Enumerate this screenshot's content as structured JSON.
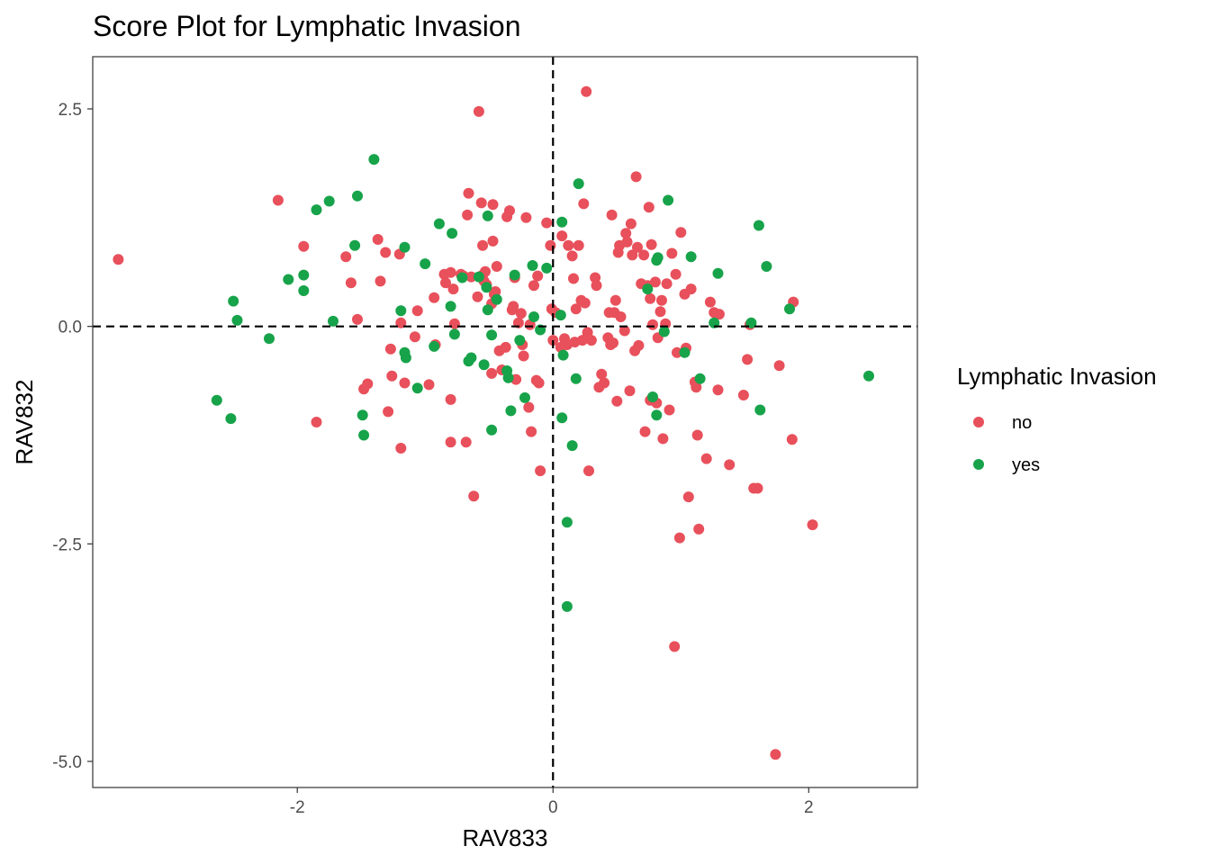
{
  "chart_data": {
    "type": "scatter",
    "title": "Score Plot for Lymphatic Invasion",
    "xlabel": "RAV833",
    "ylabel": "RAV832",
    "xlim": [
      -3.6,
      2.85
    ],
    "ylim": [
      -5.3,
      3.1
    ],
    "x_ticks": [
      -2,
      0,
      2
    ],
    "x_tick_labels": [
      "-2",
      "0",
      "2"
    ],
    "y_ticks": [
      -5,
      -2.5,
      0,
      2.5
    ],
    "y_tick_labels": [
      "-5.0",
      "-2.5",
      "0.0",
      "2.5"
    ],
    "reference_lines": {
      "x": 0,
      "y": 0,
      "style": "dashed"
    },
    "grid": false,
    "legend": {
      "title": "Lymphatic Invasion",
      "position": "right"
    },
    "series": [
      {
        "name": "no",
        "color": "#e8505b",
        "points": [
          [
            -3.4,
            0.77
          ],
          [
            -2.15,
            1.45
          ],
          [
            -1.95,
            0.92
          ],
          [
            -1.85,
            -1.1
          ],
          [
            -1.62,
            0.8
          ],
          [
            -1.58,
            0.5
          ],
          [
            -1.53,
            0.08
          ],
          [
            -1.48,
            -0.72
          ],
          [
            -1.45,
            -0.66
          ],
          [
            -1.37,
            1.0
          ],
          [
            -1.35,
            0.52
          ],
          [
            -1.31,
            0.85
          ],
          [
            -1.29,
            -0.98
          ],
          [
            -1.27,
            -0.26
          ],
          [
            -1.26,
            -0.57
          ],
          [
            -1.2,
            0.83
          ],
          [
            -1.19,
            0.04
          ],
          [
            -1.19,
            -1.4
          ],
          [
            -1.16,
            -0.65
          ],
          [
            -1.08,
            -0.12
          ],
          [
            -1.06,
            0.18
          ],
          [
            -0.97,
            -0.67
          ],
          [
            -0.93,
            0.33
          ],
          [
            -0.92,
            -0.21
          ],
          [
            -0.85,
            0.6
          ],
          [
            -0.84,
            0.5
          ],
          [
            -0.8,
            0.62
          ],
          [
            -0.8,
            -0.84
          ],
          [
            -0.8,
            -1.33
          ],
          [
            -0.78,
            0.43
          ],
          [
            -0.77,
            0.03
          ],
          [
            -0.72,
            0.6
          ],
          [
            -0.7,
            0.58
          ],
          [
            -0.68,
            -1.33
          ],
          [
            -0.67,
            1.28
          ],
          [
            -0.66,
            1.53
          ],
          [
            -0.64,
            0.57
          ],
          [
            -0.62,
            -1.95
          ],
          [
            -0.59,
            0.34
          ],
          [
            -0.58,
            2.47
          ],
          [
            -0.56,
            1.42
          ],
          [
            -0.55,
            0.93
          ],
          [
            -0.55,
            0.59
          ],
          [
            -0.54,
            0.52
          ],
          [
            -0.53,
            0.63
          ],
          [
            -0.52,
            0.48
          ],
          [
            -0.48,
            0.26
          ],
          [
            -0.48,
            -0.54
          ],
          [
            -0.47,
            1.4
          ],
          [
            -0.47,
            0.98
          ],
          [
            -0.46,
            0.37
          ],
          [
            -0.45,
            0.4
          ],
          [
            -0.44,
            0.69
          ],
          [
            -0.42,
            -0.28
          ],
          [
            -0.4,
            -0.5
          ],
          [
            -0.37,
            -0.24
          ],
          [
            -0.36,
            1.26
          ],
          [
            -0.34,
            1.33
          ],
          [
            -0.32,
            0.19
          ],
          [
            -0.31,
            0.23
          ],
          [
            -0.3,
            0.56
          ],
          [
            -0.29,
            -0.61
          ],
          [
            -0.27,
            0.04
          ],
          [
            -0.25,
            0.15
          ],
          [
            -0.24,
            -0.21
          ],
          [
            -0.23,
            -0.34
          ],
          [
            -0.21,
            1.25
          ],
          [
            -0.19,
            -0.93
          ],
          [
            -0.18,
            0.02
          ],
          [
            -0.17,
            -1.21
          ],
          [
            -0.15,
            0.47
          ],
          [
            -0.13,
            -0.62
          ],
          [
            -0.12,
            0.58
          ],
          [
            -0.11,
            -0.65
          ],
          [
            -0.1,
            -1.66
          ],
          [
            -0.05,
            1.19
          ],
          [
            -0.02,
            0.93
          ],
          [
            -0.01,
            0.2
          ],
          [
            0.0,
            -0.16
          ],
          [
            0.02,
            0.16
          ],
          [
            0.06,
            -0.24
          ],
          [
            0.07,
            1.04
          ],
          [
            0.09,
            -0.14
          ],
          [
            0.11,
            -0.21
          ],
          [
            0.12,
            0.93
          ],
          [
            0.15,
            0.81
          ],
          [
            0.16,
            0.55
          ],
          [
            0.17,
            -0.18
          ],
          [
            0.18,
            0.2
          ],
          [
            0.2,
            0.93
          ],
          [
            0.22,
            0.3
          ],
          [
            0.23,
            -0.16
          ],
          [
            0.24,
            1.41
          ],
          [
            0.25,
            0.27
          ],
          [
            0.26,
            2.7
          ],
          [
            0.27,
            -0.07
          ],
          [
            0.28,
            -1.66
          ],
          [
            0.3,
            -0.16
          ],
          [
            0.33,
            0.56
          ],
          [
            0.34,
            0.47
          ],
          [
            0.36,
            -0.7
          ],
          [
            0.38,
            -0.55
          ],
          [
            0.4,
            -0.65
          ],
          [
            0.43,
            -0.13
          ],
          [
            0.44,
            0.16
          ],
          [
            0.45,
            -0.21
          ],
          [
            0.46,
            1.28
          ],
          [
            0.47,
            -0.19
          ],
          [
            0.48,
            0.16
          ],
          [
            0.49,
            0.3
          ],
          [
            0.5,
            -0.86
          ],
          [
            0.51,
            0.85
          ],
          [
            0.52,
            0.93
          ],
          [
            0.53,
            0.11
          ],
          [
            0.56,
            -0.05
          ],
          [
            0.57,
            1.07
          ],
          [
            0.58,
            0.97
          ],
          [
            0.6,
            -0.74
          ],
          [
            0.61,
            1.18
          ],
          [
            0.62,
            0.82
          ],
          [
            0.64,
            -0.28
          ],
          [
            0.65,
            1.72
          ],
          [
            0.66,
            0.91
          ],
          [
            0.67,
            -0.22
          ],
          [
            0.69,
            0.49
          ],
          [
            0.71,
            0.82
          ],
          [
            0.72,
            -1.21
          ],
          [
            0.74,
            0.47
          ],
          [
            0.75,
            1.37
          ],
          [
            0.76,
            0.32
          ],
          [
            0.76,
            -0.85
          ],
          [
            0.77,
            0.94
          ],
          [
            0.78,
            0.02
          ],
          [
            0.8,
            0.51
          ],
          [
            0.81,
            -0.88
          ],
          [
            0.82,
            -0.13
          ],
          [
            0.84,
            0.17
          ],
          [
            0.85,
            0.3
          ],
          [
            0.86,
            -1.29
          ],
          [
            0.88,
            0.03
          ],
          [
            0.89,
            0.49
          ],
          [
            0.91,
            -0.96
          ],
          [
            0.93,
            0.84
          ],
          [
            0.95,
            -3.68
          ],
          [
            0.96,
            0.6
          ],
          [
            0.97,
            -0.3
          ],
          [
            0.99,
            -2.43
          ],
          [
            1.0,
            1.08
          ],
          [
            1.03,
            0.37
          ],
          [
            1.04,
            -0.25
          ],
          [
            1.06,
            -1.96
          ],
          [
            1.08,
            0.43
          ],
          [
            1.11,
            -0.64
          ],
          [
            1.12,
            -0.7
          ],
          [
            1.13,
            -1.25
          ],
          [
            1.14,
            -2.33
          ],
          [
            1.2,
            -1.52
          ],
          [
            1.23,
            0.28
          ],
          [
            1.26,
            0.16
          ],
          [
            1.29,
            -0.73
          ],
          [
            1.3,
            0.14
          ],
          [
            1.38,
            -1.59
          ],
          [
            1.49,
            -0.79
          ],
          [
            1.52,
            -0.38
          ],
          [
            1.54,
            0.02
          ],
          [
            1.57,
            -1.86
          ],
          [
            1.6,
            -1.86
          ],
          [
            1.74,
            -4.92
          ],
          [
            1.77,
            -0.45
          ],
          [
            1.87,
            -1.3
          ],
          [
            1.88,
            0.28
          ],
          [
            2.03,
            -2.28
          ]
        ]
      },
      {
        "name": "yes",
        "color": "#17a34a",
        "points": [
          [
            -2.63,
            -0.85
          ],
          [
            -2.52,
            -1.06
          ],
          [
            -2.5,
            0.29
          ],
          [
            -2.47,
            0.07
          ],
          [
            -2.22,
            -0.14
          ],
          [
            -2.07,
            0.54
          ],
          [
            -1.95,
            0.59
          ],
          [
            -1.95,
            0.41
          ],
          [
            -1.85,
            1.34
          ],
          [
            -1.75,
            1.44
          ],
          [
            -1.72,
            0.06
          ],
          [
            -1.55,
            0.93
          ],
          [
            -1.53,
            1.5
          ],
          [
            -1.49,
            -1.02
          ],
          [
            -1.48,
            -1.25
          ],
          [
            -1.4,
            1.92
          ],
          [
            -1.19,
            0.18
          ],
          [
            -1.16,
            0.91
          ],
          [
            -1.16,
            -0.3
          ],
          [
            -1.15,
            -0.36
          ],
          [
            -1.06,
            -0.71
          ],
          [
            -1.0,
            0.72
          ],
          [
            -0.93,
            -0.23
          ],
          [
            -0.89,
            1.18
          ],
          [
            -0.8,
            0.23
          ],
          [
            -0.79,
            1.07
          ],
          [
            -0.77,
            -0.09
          ],
          [
            -0.71,
            0.56
          ],
          [
            -0.66,
            -0.4
          ],
          [
            -0.64,
            -0.36
          ],
          [
            -0.58,
            0.57
          ],
          [
            -0.54,
            -0.44
          ],
          [
            -0.52,
            0.45
          ],
          [
            -0.51,
            0.19
          ],
          [
            -0.51,
            1.27
          ],
          [
            -0.48,
            -0.1
          ],
          [
            -0.48,
            -1.19
          ],
          [
            -0.44,
            0.31
          ],
          [
            -0.36,
            -0.51
          ],
          [
            -0.35,
            -0.59
          ],
          [
            -0.33,
            -0.97
          ],
          [
            -0.3,
            0.59
          ],
          [
            -0.26,
            -0.16
          ],
          [
            -0.22,
            -0.82
          ],
          [
            -0.16,
            0.7
          ],
          [
            -0.15,
            0.11
          ],
          [
            -0.1,
            -0.04
          ],
          [
            -0.05,
            0.67
          ],
          [
            0.06,
            0.13
          ],
          [
            0.07,
            1.2
          ],
          [
            0.07,
            -1.05
          ],
          [
            0.08,
            -0.33
          ],
          [
            0.11,
            -2.25
          ],
          [
            0.11,
            -3.22
          ],
          [
            0.15,
            -1.37
          ],
          [
            0.18,
            -0.6
          ],
          [
            0.2,
            1.64
          ],
          [
            0.74,
            0.43
          ],
          [
            0.78,
            -0.81
          ],
          [
            0.81,
            0.76
          ],
          [
            0.82,
            0.79
          ],
          [
            0.81,
            -1.02
          ],
          [
            0.87,
            -0.06
          ],
          [
            0.9,
            1.45
          ],
          [
            1.03,
            -0.3
          ],
          [
            1.08,
            0.8
          ],
          [
            1.15,
            -0.6
          ],
          [
            1.26,
            0.04
          ],
          [
            1.29,
            0.61
          ],
          [
            1.55,
            0.04
          ],
          [
            1.61,
            1.16
          ],
          [
            1.62,
            -0.96
          ],
          [
            1.67,
            0.69
          ],
          [
            1.85,
            0.2
          ],
          [
            2.47,
            -0.57
          ]
        ]
      }
    ]
  }
}
